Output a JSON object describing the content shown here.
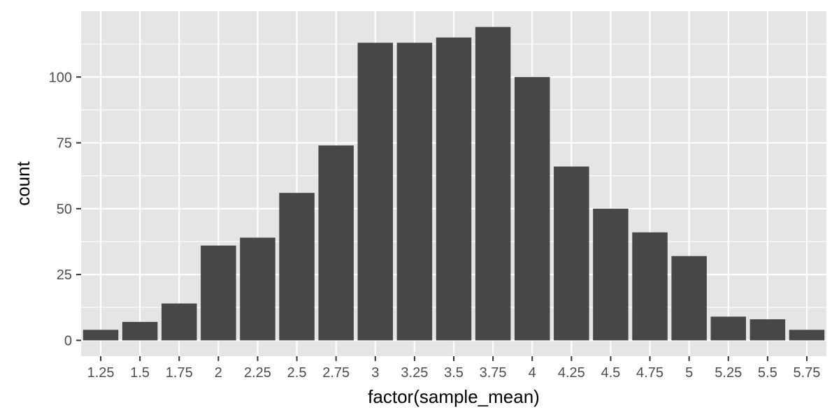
{
  "chart_data": {
    "type": "bar",
    "xlabel": "factor(sample_mean)",
    "ylabel": "count",
    "categories": [
      "1.25",
      "1.5",
      "1.75",
      "2",
      "2.25",
      "2.5",
      "2.75",
      "3",
      "3.25",
      "3.5",
      "3.75",
      "4",
      "4.25",
      "4.5",
      "4.75",
      "5",
      "5.25",
      "5.5",
      "5.75"
    ],
    "values": [
      4,
      7,
      14,
      36,
      39,
      56,
      74,
      113,
      113,
      115,
      119,
      100,
      66,
      50,
      41,
      32,
      9,
      8,
      4
    ],
    "ylim": [
      0,
      125
    ],
    "y_ticks": [
      0,
      25,
      50,
      75,
      100
    ],
    "y_tick_labels": [
      "0",
      "25",
      "50",
      "75",
      "100"
    ],
    "grid": true,
    "colors": {
      "bar": "#474747",
      "panel": "#e5e5e5",
      "grid": "#ffffff",
      "tick_text": "#4d4d4d",
      "title_text": "#000000"
    }
  }
}
